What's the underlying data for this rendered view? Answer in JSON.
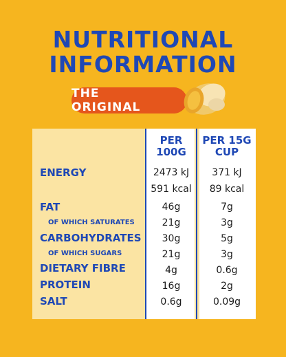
{
  "title_line1": "NUTRITIONAL",
  "title_line2": "INFORMATION",
  "subtitle": "THE ORIGINAL",
  "columns": {
    "per100_line1": "PER",
    "per100_line2": "100G",
    "per15_line1": "PER 15G",
    "per15_line2": "CUP"
  },
  "rows": {
    "energy": {
      "label": "ENERGY",
      "kj_100": "2473 kJ",
      "kj_15": "371 kJ",
      "kcal_100": "591 kcal",
      "kcal_15": "89 kcal"
    },
    "fat": {
      "label": "FAT",
      "v100": "46g",
      "v15": "7g"
    },
    "saturates": {
      "label": "OF WHICH SATURATES",
      "v100": "21g",
      "v15": "3g"
    },
    "carbs": {
      "label": "CARBOHYDRATES",
      "v100": "30g",
      "v15": "5g"
    },
    "sugars": {
      "label": "OF WHICH SUGARS",
      "v100": "21g",
      "v15": "3g"
    },
    "fibre": {
      "label": "DIETARY FIBRE",
      "v100": "4g",
      "v15": "0.6g"
    },
    "protein": {
      "label": "PROTEIN",
      "v100": "16g",
      "v15": "2g"
    },
    "salt": {
      "label": "SALT",
      "v100": "0.6g",
      "v15": "0.09g"
    }
  },
  "colors": {
    "background": "#f6b51f",
    "brand_blue": "#1f48b5",
    "pill": "#e5561c",
    "panel": "#fbe4a3"
  },
  "icons": {
    "peanut": "peanut-icon"
  }
}
